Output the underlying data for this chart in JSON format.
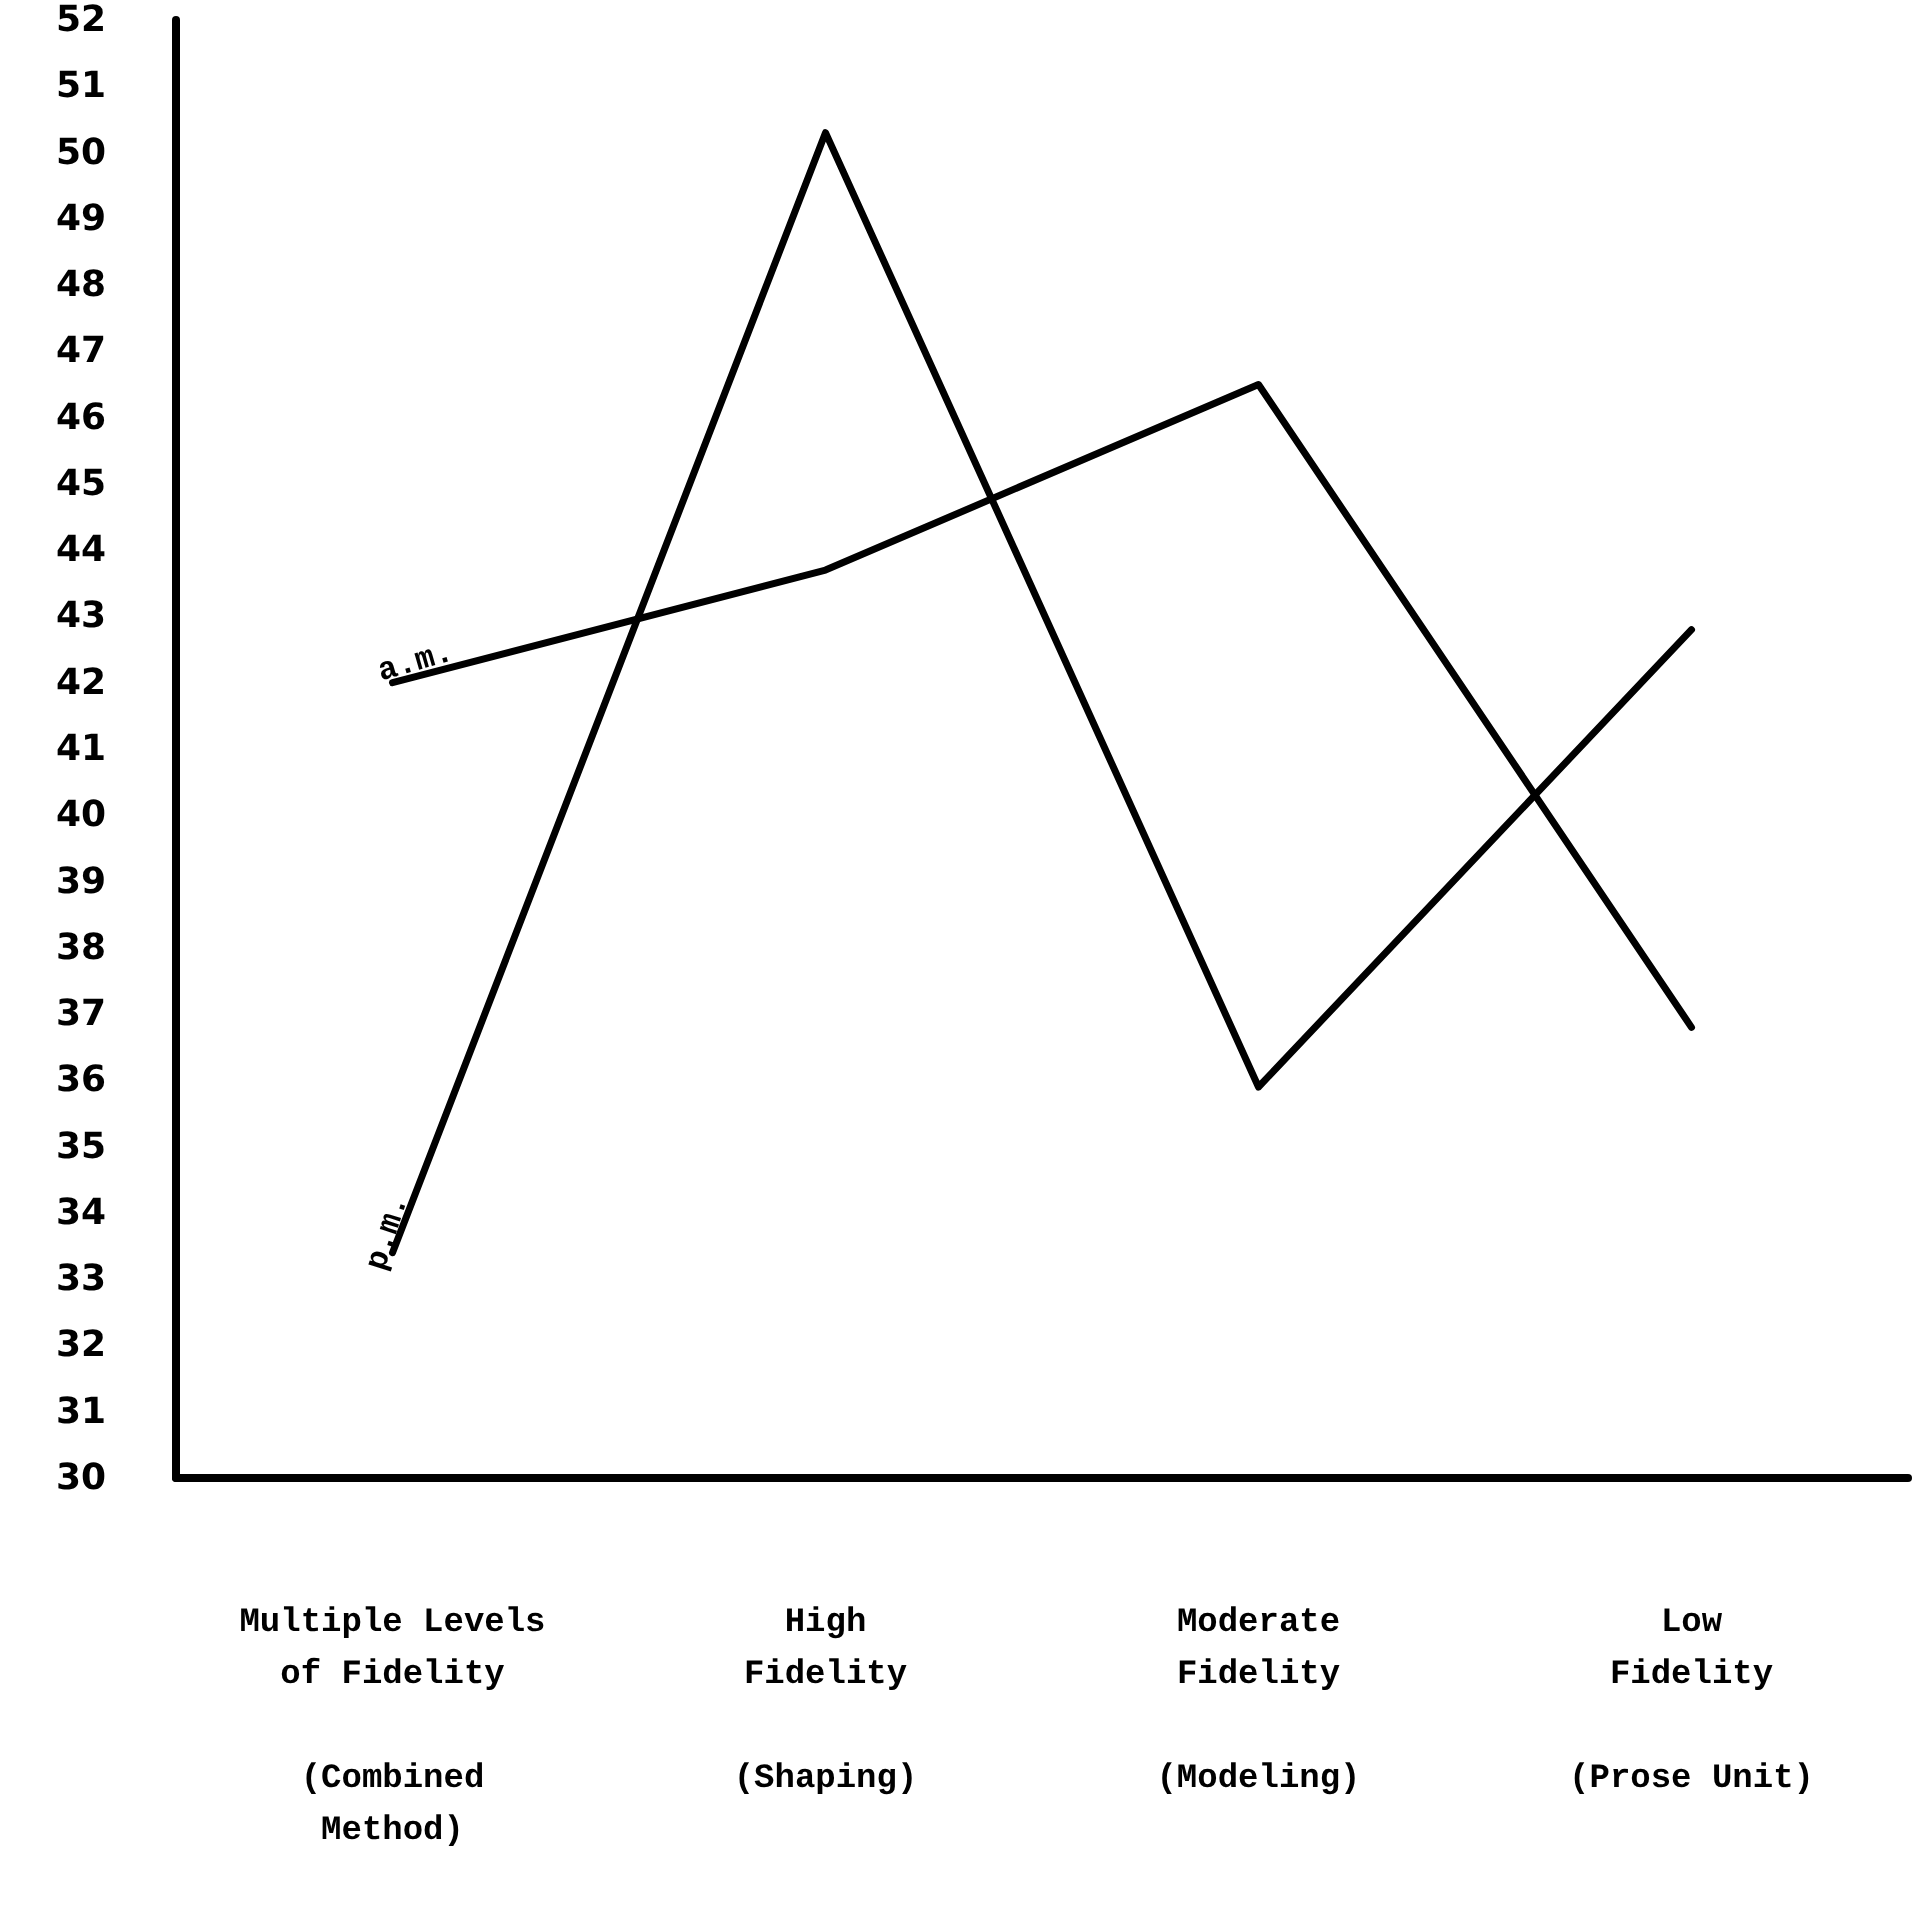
{
  "chart_data": {
    "type": "line",
    "categories": [
      "Multiple Levels\nof Fidelity\n\n(Combined\nMethod)",
      "High\nFidelity\n\n(Shaping)",
      "Moderate\nFidelity\n\n(Modeling)",
      "Low\nFidelity\n\n(Prose Unit)"
    ],
    "series": [
      {
        "name": "a.m.",
        "color": "#000000",
        "values": [
          42,
          43.7,
          46.5,
          36.8
        ]
      },
      {
        "name": "p.m.",
        "color": "#000000",
        "values": [
          33.4,
          50.3,
          35.9,
          42.8
        ]
      }
    ],
    "ylim": [
      30,
      52
    ],
    "yticks": [
      30,
      31,
      32,
      33,
      34,
      35,
      36,
      37,
      38,
      39,
      40,
      41,
      42,
      43,
      44,
      45,
      46,
      47,
      48,
      49,
      50,
      51,
      52
    ],
    "grid": false,
    "legend": false,
    "marker": "none",
    "line_style": "solid"
  }
}
